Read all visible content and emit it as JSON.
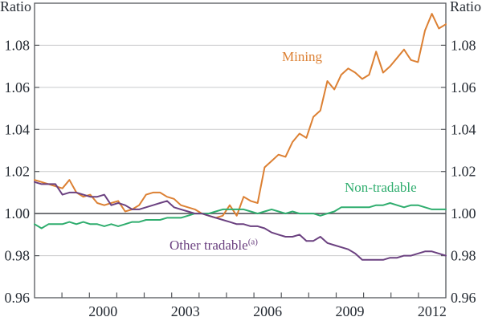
{
  "chart_data": {
    "type": "line",
    "title": "",
    "unit_label_left": "Ratio",
    "unit_label_right": "Ratio",
    "ylim": [
      0.96,
      1.1
    ],
    "y_ticks": [
      0.96,
      0.98,
      1.0,
      1.02,
      1.04,
      1.06,
      1.08
    ],
    "y_tick_labels": [
      "0.96",
      "0.98",
      "1.00",
      "1.02",
      "1.04",
      "1.06",
      "1.08"
    ],
    "baseline": 1.0,
    "xlim_years": [
      1998,
      2013
    ],
    "x_axis_labels": [
      {
        "text": "2000",
        "center_year": 2000.5
      },
      {
        "text": "2003",
        "center_year": 2003.5
      },
      {
        "text": "2006",
        "center_year": 2006.5
      },
      {
        "text": "2009",
        "center_year": 2009.5
      },
      {
        "text": "2012",
        "center_year": 2012.5
      }
    ],
    "frequency": "quarterly",
    "start_period": "1998Q1",
    "end_period": "2012Q4",
    "grid": "horizontal",
    "legend_position": "inline-annotations",
    "colors": {
      "text": "#252b33",
      "frame": "#55585c",
      "gridline": "#c9cacc",
      "baseline_line": "#54575b"
    },
    "series": [
      {
        "name": "Mining",
        "color": "#dc8033",
        "values": [
          1.016,
          1.015,
          1.014,
          1.013,
          1.012,
          1.016,
          1.01,
          1.008,
          1.009,
          1.005,
          1.004,
          1.005,
          1.006,
          1.001,
          1.002,
          1.004,
          1.009,
          1.01,
          1.01,
          1.008,
          1.007,
          1.004,
          1.003,
          1.002,
          1.0,
          0.999,
          0.998,
          0.999,
          1.004,
          0.999,
          1.008,
          1.006,
          1.005,
          1.022,
          1.025,
          1.028,
          1.027,
          1.034,
          1.038,
          1.036,
          1.046,
          1.049,
          1.063,
          1.059,
          1.066,
          1.069,
          1.067,
          1.064,
          1.066,
          1.077,
          1.067,
          1.07,
          1.074,
          1.078,
          1.073,
          1.072,
          1.087,
          1.095,
          1.088,
          1.09
        ]
      },
      {
        "name": "Non-tradable",
        "color": "#2fad6e",
        "values": [
          0.995,
          0.993,
          0.995,
          0.995,
          0.995,
          0.996,
          0.995,
          0.996,
          0.995,
          0.995,
          0.994,
          0.995,
          0.994,
          0.995,
          0.996,
          0.996,
          0.997,
          0.997,
          0.997,
          0.998,
          0.998,
          0.998,
          0.999,
          1.0,
          1.0,
          1.0,
          1.001,
          1.002,
          1.002,
          1.002,
          1.002,
          1.001,
          1.0,
          1.001,
          1.002,
          1.001,
          1.0,
          1.001,
          1.0,
          1.0,
          1.0,
          0.999,
          1.0,
          1.001,
          1.003,
          1.003,
          1.003,
          1.003,
          1.003,
          1.004,
          1.004,
          1.005,
          1.004,
          1.003,
          1.004,
          1.004,
          1.003,
          1.002,
          1.002,
          1.002
        ]
      },
      {
        "name": "Other tradable",
        "footnote_marker": "(a)",
        "color": "#6b4180",
        "values": [
          1.015,
          1.014,
          1.014,
          1.014,
          1.009,
          1.01,
          1.01,
          1.009,
          1.008,
          1.008,
          1.009,
          1.004,
          1.005,
          1.004,
          1.002,
          1.002,
          1.003,
          1.004,
          1.005,
          1.006,
          1.003,
          1.002,
          1.001,
          1.0,
          1.0,
          0.999,
          0.998,
          0.997,
          0.996,
          0.995,
          0.995,
          0.994,
          0.994,
          0.993,
          0.991,
          0.99,
          0.989,
          0.989,
          0.99,
          0.987,
          0.987,
          0.989,
          0.986,
          0.985,
          0.984,
          0.983,
          0.981,
          0.978,
          0.978,
          0.978,
          0.978,
          0.979,
          0.979,
          0.98,
          0.98,
          0.981,
          0.982,
          0.982,
          0.981,
          0.98
        ]
      }
    ]
  }
}
